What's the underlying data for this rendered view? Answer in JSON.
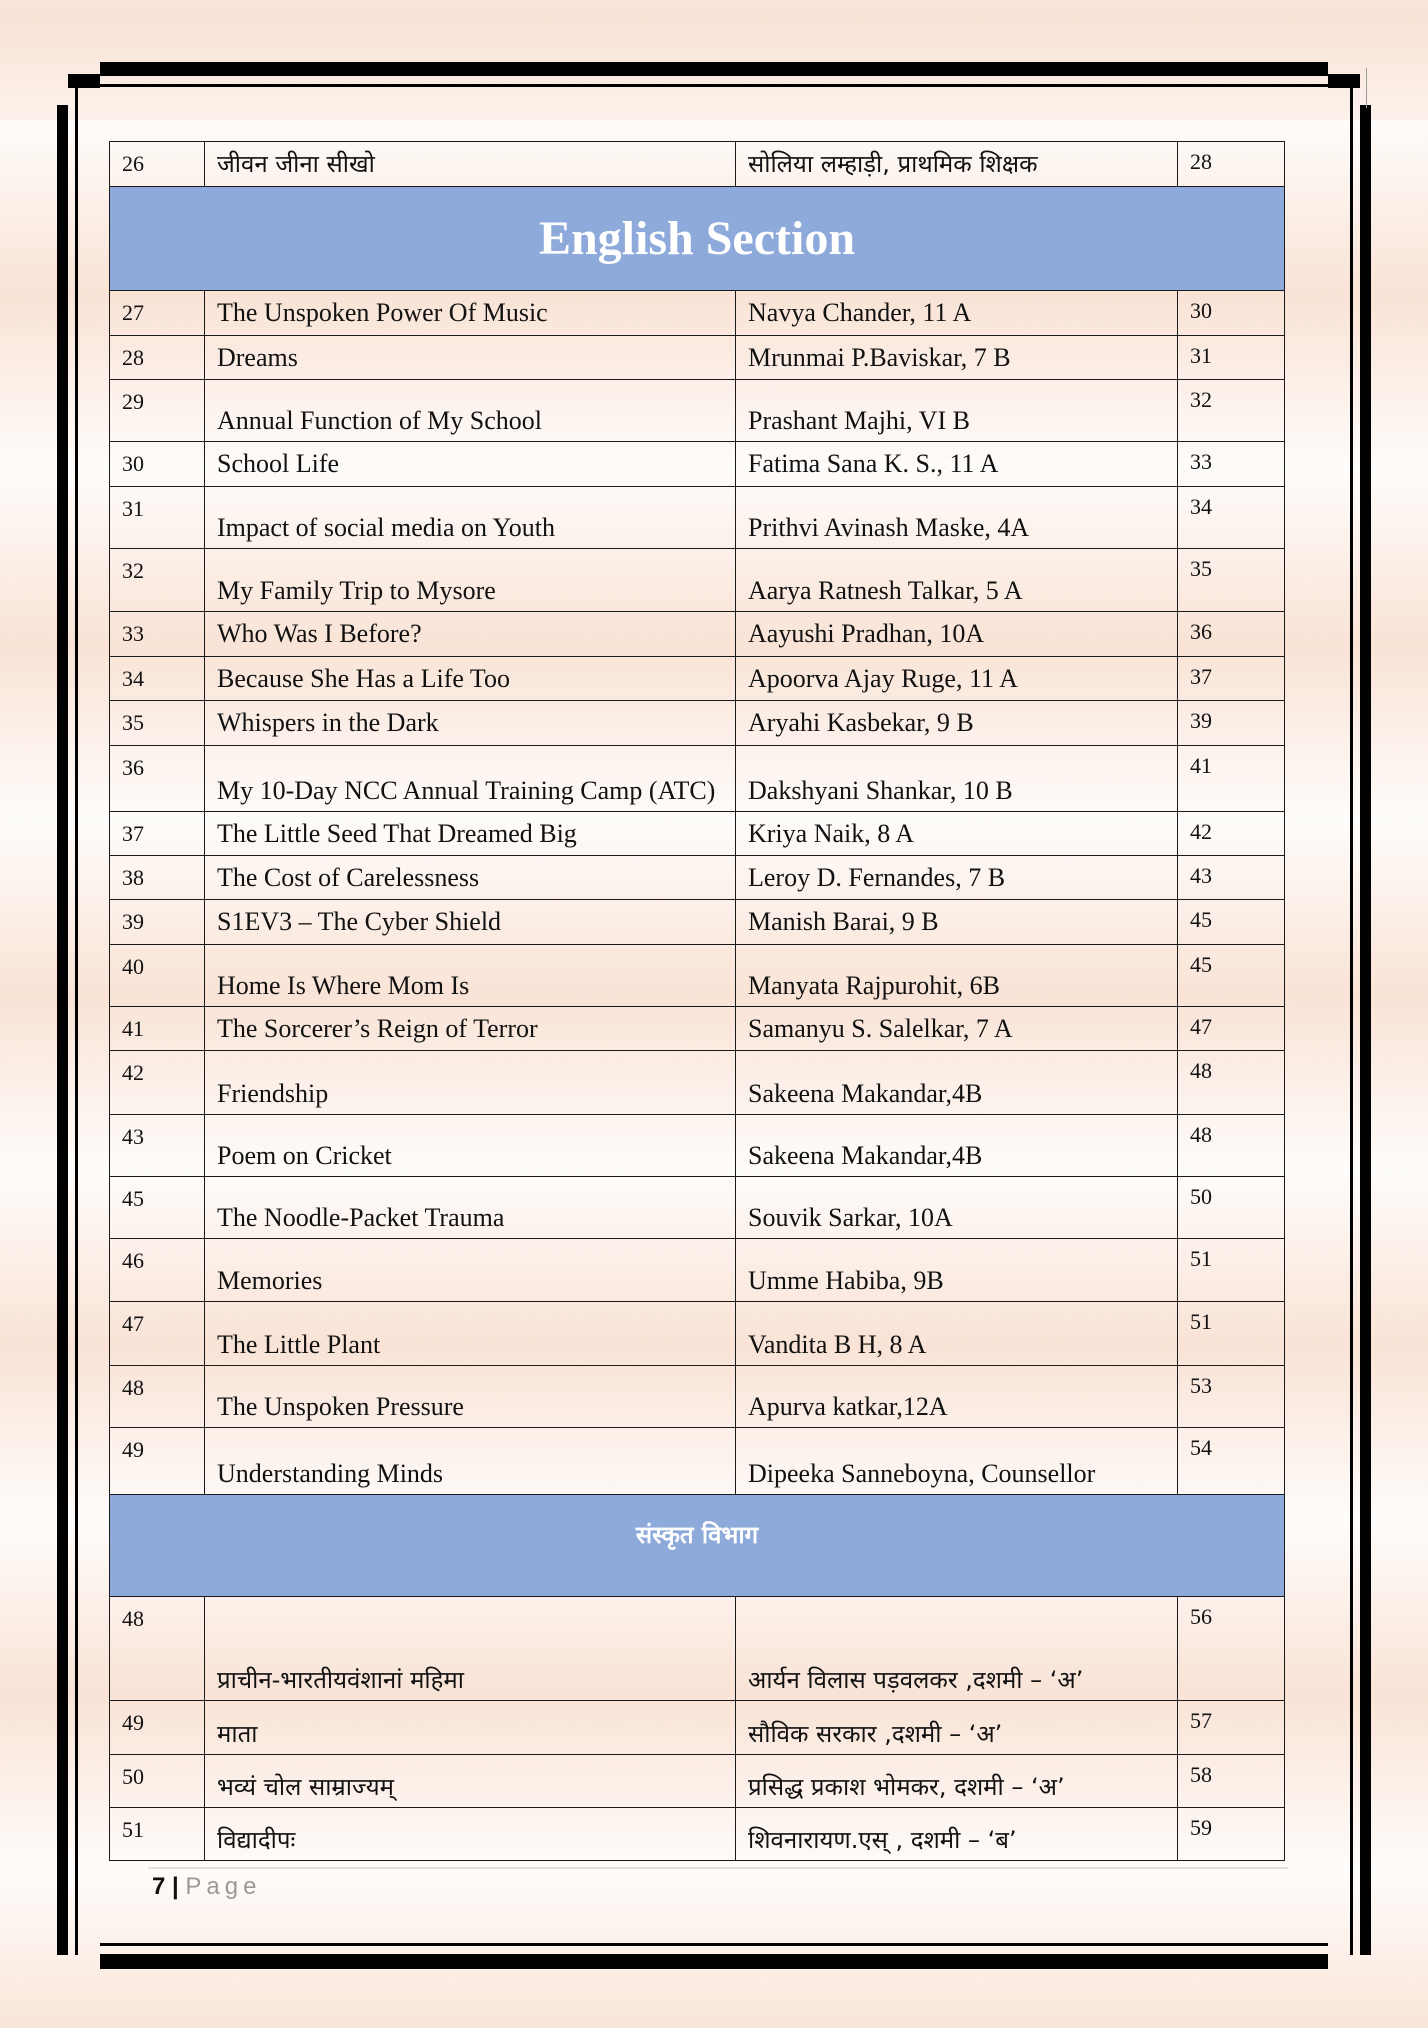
{
  "colors": {
    "section_header": "#8eaadb",
    "row_tint": "#f9e3d6",
    "border": "#000000"
  },
  "rows": [
    {
      "type": "entry",
      "num": "26",
      "title": "जीवन जीना सीखो",
      "author": "सोलिया लम्हाड़ी, प्राथमिक शिक्षक",
      "page": "28",
      "lang": "hi"
    },
    {
      "type": "section",
      "label": "English Section"
    },
    {
      "type": "entry",
      "num": "27",
      "title": "The Unspoken Power Of Music",
      "author": "Navya Chander, 11 A",
      "page": "30"
    },
    {
      "type": "entry",
      "num": "28",
      "title": "Dreams",
      "author": "Mrunmai P.Baviskar, 7 B",
      "page": "31"
    },
    {
      "type": "entry",
      "num": "29",
      "title": "Annual Function of My School",
      "author": "Prashant Majhi, VI B",
      "page": "32"
    },
    {
      "type": "entry",
      "num": "30",
      "title": "School Life",
      "author": "Fatima Sana K. S., 11 A",
      "page": "33"
    },
    {
      "type": "entry",
      "num": "31",
      "title": "Impact of social media on Youth",
      "author": "Prithvi Avinash Maske, 4A",
      "page": "34"
    },
    {
      "type": "entry",
      "num": "32",
      "title": "My Family Trip to Mysore",
      "author": "Aarya Ratnesh Talkar, 5 A",
      "page": "35"
    },
    {
      "type": "entry",
      "num": "33",
      "title": "Who Was I Before?",
      "author": "Aayushi Pradhan, 10A",
      "page": "36"
    },
    {
      "type": "entry",
      "num": "34",
      "title": "Because She Has a Life Too",
      "author": "Apoorva Ajay Ruge, 11 A",
      "page": "37"
    },
    {
      "type": "entry",
      "num": "35",
      "title": "Whispers in the Dark",
      "author": "Aryahi Kasbekar, 9 B",
      "page": "39"
    },
    {
      "type": "entry",
      "num": "36",
      "title": "My 10-Day NCC Annual Training Camp (ATC)",
      "author": "Dakshyani Shankar, 10 B",
      "page": "41"
    },
    {
      "type": "entry",
      "num": "37",
      "title": "The Little Seed That Dreamed Big",
      "author": "Kriya Naik, 8 A",
      "page": "42"
    },
    {
      "type": "entry",
      "num": "38",
      "title": "The Cost of Carelessness",
      "author": "Leroy D. Fernandes, 7 B",
      "page": "43"
    },
    {
      "type": "entry",
      "num": "39",
      "title": "S1EV3 – The Cyber Shield",
      "author": "Manish Barai, 9 B",
      "page": "45"
    },
    {
      "type": "entry",
      "num": "40",
      "title": "Home Is Where Mom Is",
      "author": "Manyata Rajpurohit, 6B",
      "page": "45"
    },
    {
      "type": "entry",
      "num": "41",
      "title": "The Sorcerer’s Reign of Terror",
      "author": "Samanyu S. Salelkar, 7 A",
      "page": "47"
    },
    {
      "type": "entry",
      "num": "42",
      "title": "Friendship",
      "author": "Sakeena Makandar,4B",
      "page": "48"
    },
    {
      "type": "entry",
      "num": "43",
      "title": "Poem on Cricket",
      "author": "Sakeena Makandar,4B",
      "page": "48"
    },
    {
      "type": "entry",
      "num": "45",
      "title": "The Noodle-Packet Trauma",
      "author": "Souvik Sarkar, 10A",
      "page": "50"
    },
    {
      "type": "entry",
      "num": "46",
      "title": "Memories",
      "author": "Umme Habiba, 9B",
      "page": "51"
    },
    {
      "type": "entry",
      "num": "47",
      "title": "The Little Plant",
      "author": "Vandita B H, 8 A",
      "page": "51"
    },
    {
      "type": "entry",
      "num": "48",
      "title": "The Unspoken Pressure",
      "author": "Apurva katkar,12A",
      "page": "53"
    },
    {
      "type": "entry",
      "num": "49",
      "title": "Understanding Minds",
      "author": "Dipeeka Sanneboyna, Counsellor",
      "page": "54"
    },
    {
      "type": "section",
      "label": "संस्कृत विभाग",
      "lang": "sa"
    },
    {
      "type": "entry",
      "num": "48",
      "title": "प्राचीन-भारतीयवंशानां महिमा",
      "author": "आर्यन विलास पड़वलकर ,दशमी – ‘अ’",
      "page": "56",
      "lang": "sa"
    },
    {
      "type": "entry",
      "num": "49",
      "title": "माता",
      "author": "सौविक सरकार ,दशमी – ‘अ’",
      "page": "57",
      "lang": "sa"
    },
    {
      "type": "entry",
      "num": "50",
      "title": "भव्यं चोल साम्राज्यम्",
      "author": "प्रसिद्ध प्रकाश भोमकर, दशमी – ‘अ’",
      "page": "58",
      "lang": "sa"
    },
    {
      "type": "entry",
      "num": "51",
      "title": "विद्यादीपः",
      "author": "शिवनारायण.एस् , दशमी – ‘ब’",
      "page": "59",
      "lang": "sa"
    }
  ],
  "footer": {
    "page_number": "7",
    "separator": "|",
    "page_label": "Page"
  }
}
